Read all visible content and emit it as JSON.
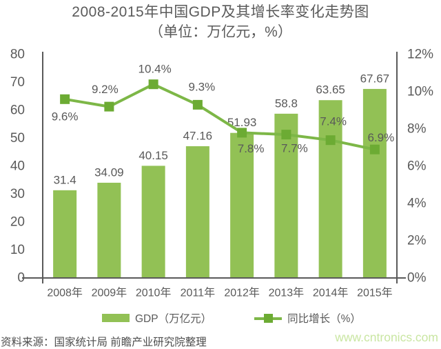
{
  "chart_data": {
    "type": "bar",
    "combo": "bar+line",
    "title": "2008-2015年中国GDP及其增长率变化走势图",
    "subtitle": "（单位：万亿元，%）",
    "categories": [
      "2008年",
      "2009年",
      "2010年",
      "2011年",
      "2012年",
      "2013年",
      "2014年",
      "2015年"
    ],
    "series": [
      {
        "name": "GDP（万亿元）",
        "type": "bar",
        "axis": "left",
        "color": "#92c155",
        "values": [
          31.4,
          34.09,
          40.15,
          47.16,
          51.93,
          58.8,
          63.65,
          67.67
        ],
        "data_labels": [
          "31.4",
          "34.09",
          "40.15",
          "47.16",
          "51.93",
          "58.8",
          "63.65",
          "67.67"
        ]
      },
      {
        "name": "同比增长（%）",
        "type": "line",
        "axis": "right",
        "color": "#7db747",
        "marker": "square",
        "marker_color": "#6cab33",
        "values": [
          9.6,
          9.2,
          10.4,
          9.3,
          7.8,
          7.7,
          7.4,
          6.9
        ],
        "data_labels": [
          "9.6%",
          "9.2%",
          "10.4%",
          "9.3%",
          "7.8%",
          "7.7%",
          "7.4%",
          "6.9%"
        ],
        "label_offsets": [
          [
            0,
            25
          ],
          [
            -6,
            -25
          ],
          [
            2,
            -22
          ],
          [
            6,
            -26
          ],
          [
            13,
            23
          ],
          [
            12,
            20
          ],
          [
            4,
            -27
          ],
          [
            9,
            -17
          ]
        ]
      }
    ],
    "left_axis": {
      "min": 0,
      "max": 80,
      "step": 10,
      "tick_labels": [
        "0",
        "10",
        "20",
        "30",
        "40",
        "50",
        "60",
        "70",
        "80"
      ]
    },
    "right_axis": {
      "min": 0,
      "max": 12,
      "step": 2,
      "tick_labels": [
        "0%",
        "2%",
        "4%",
        "6%",
        "8%",
        "10%",
        "12%"
      ]
    },
    "grid": false,
    "legend_position": "bottom",
    "axis_color": "#595959",
    "text_color": "#595959"
  },
  "footer": {
    "source": "资料来源：国家统计局 前瞻产业研究院整理",
    "watermark": "www.cntronics.com",
    "watermark_color": "#c9e6a2"
  }
}
